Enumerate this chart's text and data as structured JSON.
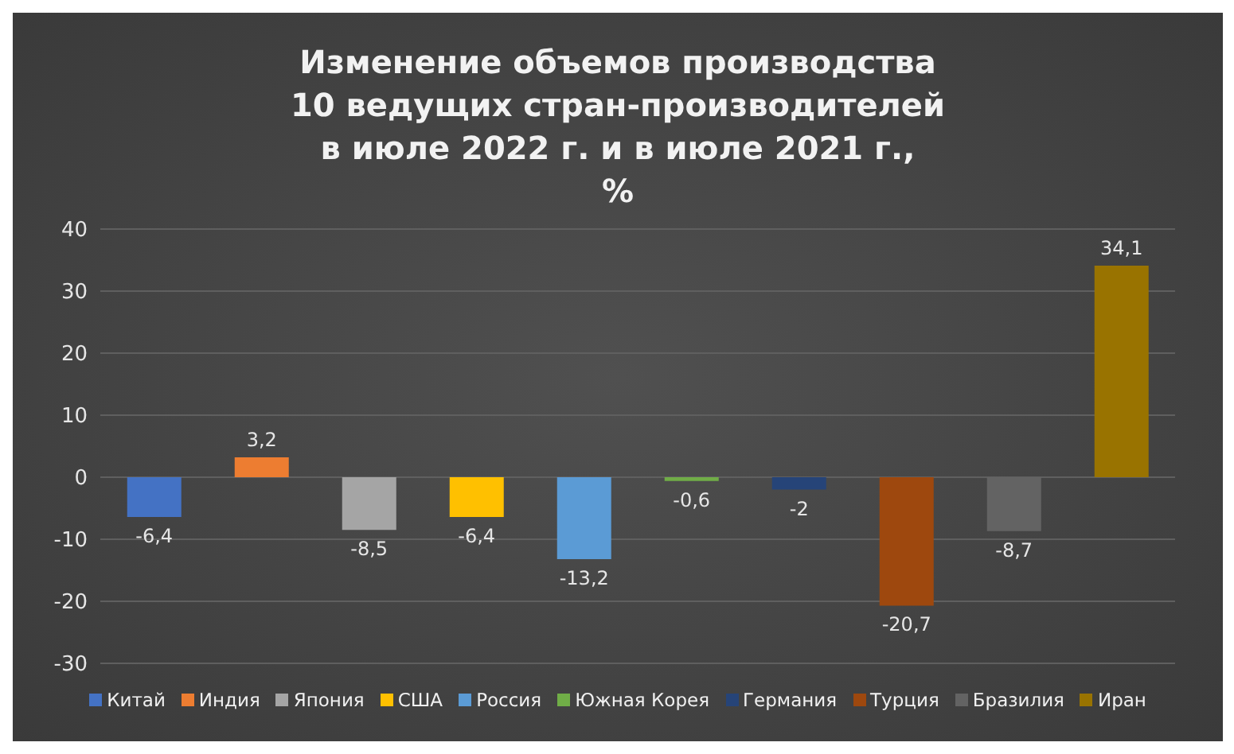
{
  "chart_data": {
    "type": "bar",
    "title": "Изменение объемов производства\n10 ведущих стран-производителей\nв июле 2022 г. и в июле 2021 г.,\n%",
    "categories": [
      null,
      null,
      null,
      null,
      null,
      null,
      null,
      null,
      null,
      null
    ],
    "series": [
      {
        "name": "Китай",
        "color": "#4472c4",
        "values": [
          -6.4,
          null,
          null,
          null,
          null,
          null,
          null,
          null,
          null,
          null
        ],
        "value_labels": [
          "-6,4",
          null,
          null,
          null,
          null,
          null,
          null,
          null,
          null,
          null
        ]
      },
      {
        "name": "Индия",
        "color": "#ed7d31",
        "values": [
          null,
          3.2,
          null,
          null,
          null,
          null,
          null,
          null,
          null,
          null
        ],
        "value_labels": [
          null,
          "3,2",
          null,
          null,
          null,
          null,
          null,
          null,
          null,
          null
        ]
      },
      {
        "name": "Япония",
        "color": "#a5a5a5",
        "values": [
          null,
          null,
          -8.5,
          null,
          null,
          null,
          null,
          null,
          null,
          null
        ],
        "value_labels": [
          null,
          null,
          "-8,5",
          null,
          null,
          null,
          null,
          null,
          null,
          null
        ]
      },
      {
        "name": "США",
        "color": "#ffc000",
        "values": [
          null,
          null,
          null,
          -6.4,
          null,
          null,
          null,
          null,
          null,
          null
        ],
        "value_labels": [
          null,
          null,
          null,
          "-6,4",
          null,
          null,
          null,
          null,
          null,
          null
        ]
      },
      {
        "name": "Россия",
        "color": "#5b9bd5",
        "values": [
          null,
          null,
          null,
          null,
          -13.2,
          null,
          null,
          null,
          null,
          null
        ],
        "value_labels": [
          null,
          null,
          null,
          null,
          "-13,2",
          null,
          null,
          null,
          null,
          null
        ]
      },
      {
        "name": "Южная Корея",
        "color": "#70ad47",
        "values": [
          null,
          null,
          null,
          null,
          null,
          -0.6,
          null,
          null,
          null,
          null
        ],
        "value_labels": [
          null,
          null,
          null,
          null,
          null,
          "-0,6",
          null,
          null,
          null,
          null
        ]
      },
      {
        "name": "Германия",
        "color": "#264478",
        "values": [
          null,
          null,
          null,
          null,
          null,
          null,
          -2,
          null,
          null,
          null
        ],
        "value_labels": [
          null,
          null,
          null,
          null,
          null,
          null,
          "-2",
          null,
          null,
          null
        ]
      },
      {
        "name": "Турция",
        "color": "#9e480e",
        "values": [
          null,
          null,
          null,
          null,
          null,
          null,
          null,
          -20.7,
          null,
          null
        ],
        "value_labels": [
          null,
          null,
          null,
          null,
          null,
          null,
          null,
          "-20,7",
          null,
          null
        ]
      },
      {
        "name": "Бразилия",
        "color": "#636363",
        "values": [
          null,
          null,
          null,
          null,
          null,
          null,
          null,
          null,
          -8.7,
          null
        ],
        "value_labels": [
          null,
          null,
          null,
          null,
          null,
          null,
          null,
          null,
          "-8,7",
          null
        ]
      },
      {
        "name": "Иран",
        "color": "#997300",
        "values": [
          null,
          null,
          null,
          null,
          null,
          null,
          null,
          null,
          null,
          34.1
        ],
        "value_labels": [
          null,
          null,
          null,
          null,
          null,
          null,
          null,
          null,
          null,
          "34,1"
        ]
      }
    ],
    "ylim": [
      -30,
      40
    ],
    "yticks": [
      -30,
      -20,
      -10,
      0,
      10,
      20,
      30,
      40
    ],
    "grid": "y",
    "legend": "bottom"
  }
}
